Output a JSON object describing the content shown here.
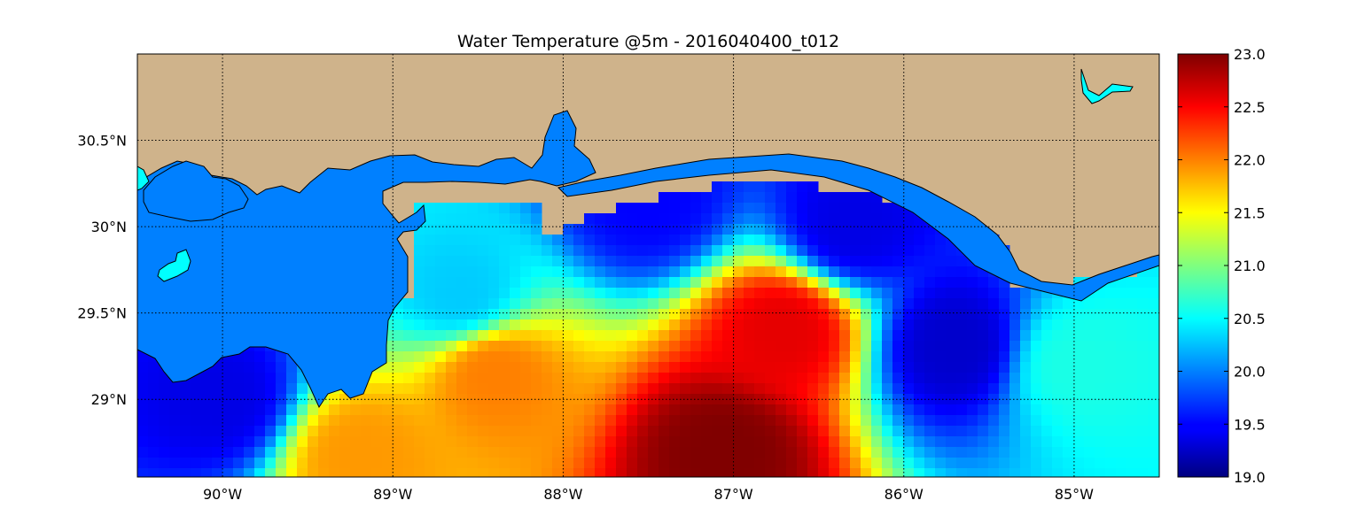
{
  "chart_data": {
    "type": "heatmap",
    "title": "Water Temperature @5m - 2016040400_t012",
    "xlim": [
      -90.5,
      -84.5
    ],
    "ylim": [
      28.55,
      31.0
    ],
    "x_ticks": [
      {
        "value": -90,
        "label": "90°W"
      },
      {
        "value": -89,
        "label": "89°W"
      },
      {
        "value": -88,
        "label": "88°W"
      },
      {
        "value": -87,
        "label": "87°W"
      },
      {
        "value": -86,
        "label": "86°W"
      },
      {
        "value": -85,
        "label": "85°W"
      }
    ],
    "y_ticks": [
      {
        "value": 29.0,
        "label": "29°N"
      },
      {
        "value": 29.5,
        "label": "29.5°N"
      },
      {
        "value": 30.0,
        "label": "30°N"
      },
      {
        "value": 30.5,
        "label": "30.5°N"
      }
    ],
    "grid": true,
    "colormap": "jet",
    "colorbar": {
      "min": 19.0,
      "max": 23.0,
      "ticks": [
        {
          "value": 19.0,
          "label": "19.0"
        },
        {
          "value": 19.5,
          "label": "19.5"
        },
        {
          "value": 20.0,
          "label": "20.0"
        },
        {
          "value": 20.5,
          "label": "20.5"
        },
        {
          "value": 21.0,
          "label": "21.0"
        },
        {
          "value": 21.5,
          "label": "21.5"
        },
        {
          "value": 22.0,
          "label": "22.0"
        },
        {
          "value": 22.5,
          "label": "22.5"
        },
        {
          "value": 23.0,
          "label": "23.0"
        }
      ]
    },
    "colors": {
      "land": "#cfb38b",
      "lake": "#00ffff",
      "shelf_water": "#0080ff"
    },
    "temperature_features": [
      {
        "feature": "warm core",
        "lon": -87.05,
        "lat": 28.7,
        "value": 23.0
      },
      {
        "feature": "warm front",
        "lon": -86.7,
        "lat": 29.4,
        "value": 22.6
      },
      {
        "feature": "warm western lobe",
        "lon": -88.4,
        "lat": 29.15,
        "value": 22.0
      },
      {
        "feature": "warm southwest",
        "lon": -89.2,
        "lat": 28.68,
        "value": 21.9
      },
      {
        "feature": "cool nearshore",
        "lon": -86.3,
        "lat": 30.0,
        "value": 19.4
      },
      {
        "feature": "cool nearshore",
        "lon": -87.5,
        "lat": 30.15,
        "value": 19.5
      },
      {
        "feature": "cool nearshore",
        "lon": -85.7,
        "lat": 29.3,
        "value": 19.3
      },
      {
        "feature": "cool west",
        "lon": -90.0,
        "lat": 29.0,
        "value": 19.4
      },
      {
        "feature": "mid shelf",
        "lon": -88.6,
        "lat": 29.6,
        "value": 20.3
      },
      {
        "feature": "east shelf",
        "lon": -85.0,
        "lat": 29.2,
        "value": 20.6
      }
    ]
  }
}
